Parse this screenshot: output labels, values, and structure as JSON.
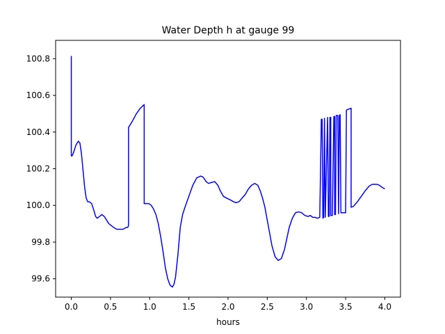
{
  "chart_data": {
    "type": "line",
    "title": "Water Depth h at gauge 99",
    "xlabel": "hours",
    "ylabel": "",
    "xlim": [
      -0.2,
      4.2
    ],
    "ylim": [
      99.5,
      100.9
    ],
    "x_ticks": [
      0.0,
      0.5,
      1.0,
      1.5,
      2.0,
      2.5,
      3.0,
      3.5,
      4.0
    ],
    "x_tick_labels": [
      "0.0",
      "0.5",
      "1.0",
      "1.5",
      "2.0",
      "2.5",
      "3.0",
      "3.5",
      "4.0"
    ],
    "y_ticks": [
      99.6,
      99.8,
      100.0,
      100.2,
      100.4,
      100.6,
      100.8
    ],
    "y_tick_labels": [
      "99.6",
      "99.8",
      "100.0",
      "100.2",
      "100.4",
      "100.6",
      "100.8"
    ],
    "grid": false,
    "colors": {
      "line": "#0000ff",
      "axes": "#000000",
      "background": "#ffffff"
    },
    "series": [
      {
        "x": [
          0.0,
          0.0,
          0.01,
          0.03,
          0.06,
          0.09,
          0.11,
          0.13,
          0.15,
          0.17,
          0.19,
          0.21,
          0.23,
          0.26,
          0.29,
          0.31,
          0.33,
          0.36,
          0.39,
          0.42,
          0.45,
          0.48,
          0.51,
          0.54,
          0.58,
          0.62,
          0.66,
          0.7,
          0.72,
          0.73,
          0.73,
          0.78,
          0.83,
          0.88,
          0.93,
          0.93,
          0.93,
          0.96,
          0.99,
          1.02,
          1.05,
          1.08,
          1.11,
          1.14,
          1.17,
          1.2,
          1.23,
          1.26,
          1.29,
          1.31,
          1.33,
          1.36,
          1.39,
          1.42,
          1.45,
          1.5,
          1.55,
          1.6,
          1.65,
          1.68,
          1.72,
          1.75,
          1.79,
          1.83,
          1.87,
          1.9,
          1.94,
          1.98,
          2.03,
          2.07,
          2.1,
          2.14,
          2.18,
          2.22,
          2.26,
          2.3,
          2.34,
          2.38,
          2.41,
          2.44,
          2.47,
          2.5,
          2.53,
          2.56,
          2.6,
          2.64,
          2.68,
          2.72,
          2.75,
          2.78,
          2.82,
          2.86,
          2.9,
          2.94,
          2.98,
          3.02,
          3.05,
          3.08,
          3.11,
          3.14,
          3.17,
          3.19,
          3.2,
          3.21,
          3.22,
          3.23,
          3.23,
          3.24,
          3.24,
          3.27,
          3.27,
          3.28,
          3.29,
          3.3,
          3.31,
          3.31,
          3.33,
          3.35,
          3.36,
          3.36,
          3.37,
          3.38,
          3.4,
          3.41,
          3.41,
          3.42,
          3.43,
          3.44,
          3.44,
          3.5,
          3.51,
          3.51,
          3.54,
          3.57,
          3.57,
          3.6,
          3.65,
          3.7,
          3.75,
          3.8,
          3.84,
          3.87,
          3.9,
          3.93,
          3.96,
          4.0
        ],
        "y": [
          100.815,
          100.27,
          100.27,
          100.29,
          100.33,
          100.35,
          100.34,
          100.28,
          100.19,
          100.1,
          100.04,
          100.02,
          100.02,
          100.01,
          99.97,
          99.94,
          99.93,
          99.94,
          99.95,
          99.94,
          99.92,
          99.9,
          99.89,
          99.88,
          99.87,
          99.87,
          99.87,
          99.88,
          99.88,
          99.89,
          100.425,
          100.46,
          100.5,
          100.53,
          100.55,
          100.545,
          100.01,
          100.01,
          100.01,
          100.0,
          99.98,
          99.95,
          99.9,
          99.83,
          99.75,
          99.66,
          99.6,
          99.565,
          99.555,
          99.57,
          99.61,
          99.73,
          99.88,
          99.95,
          99.99,
          100.05,
          100.11,
          100.15,
          100.16,
          100.155,
          100.13,
          100.12,
          100.125,
          100.13,
          100.11,
          100.08,
          100.05,
          100.04,
          100.03,
          100.02,
          100.015,
          100.02,
          100.04,
          100.06,
          100.09,
          100.11,
          100.12,
          100.11,
          100.08,
          100.04,
          99.99,
          99.92,
          99.85,
          99.78,
          99.72,
          99.7,
          99.71,
          99.76,
          99.82,
          99.88,
          99.93,
          99.96,
          99.965,
          99.96,
          99.945,
          99.94,
          99.945,
          99.935,
          99.935,
          99.93,
          99.935,
          100.47,
          100.47,
          99.93,
          99.935,
          100.475,
          100.475,
          99.935,
          99.935,
          100.48,
          100.48,
          99.94,
          99.94,
          100.48,
          100.48,
          99.945,
          99.945,
          100.485,
          100.485,
          99.95,
          99.95,
          100.49,
          100.49,
          99.955,
          99.955,
          100.49,
          100.495,
          99.96,
          99.96,
          99.96,
          100.52,
          100.52,
          100.525,
          100.53,
          99.99,
          99.995,
          100.02,
          100.05,
          100.08,
          100.105,
          100.115,
          100.115,
          100.115,
          100.11,
          100.1,
          100.09
        ]
      }
    ]
  }
}
